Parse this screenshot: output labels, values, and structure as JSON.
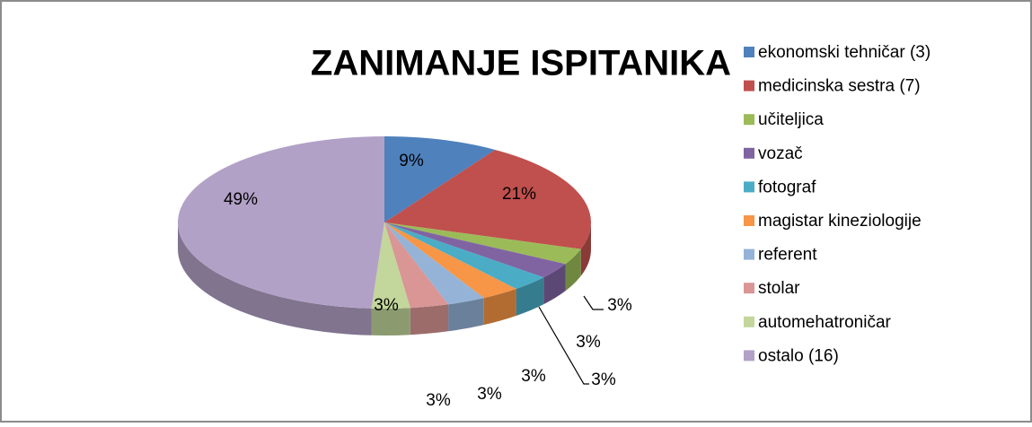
{
  "chart_data": {
    "type": "pie",
    "title": "ZANIMANJE ISPITANIKA",
    "categories": [
      "ekonomski tehničar (3)",
      "medicinska sestra (7)",
      "učiteljica",
      "vozač",
      "fotograf",
      "magistar kineziologije",
      "referent",
      "stolar",
      "automehatroničar",
      "ostalo (16)"
    ],
    "values": [
      9,
      21,
      3,
      3,
      3,
      3,
      3,
      3,
      3,
      49
    ],
    "value_labels": [
      "9%",
      "21%",
      "3%",
      "3%",
      "3%",
      "3%",
      "3%",
      "3%",
      "3%",
      "49%"
    ],
    "colors": [
      "#4f81bd",
      "#c0504d",
      "#9bbb59",
      "#8064a2",
      "#4bacc6",
      "#f79646",
      "#95b3d7",
      "#d99694",
      "#c3d69b",
      "#b2a1c7"
    ],
    "legend": "right"
  }
}
